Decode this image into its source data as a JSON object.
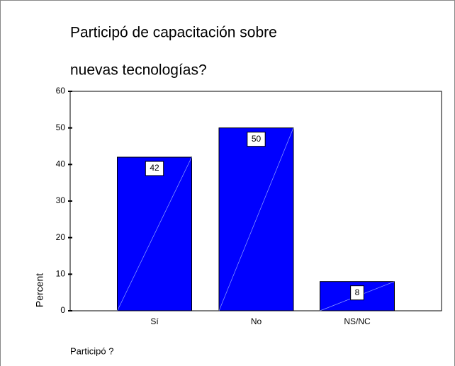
{
  "chart_data": {
    "type": "bar",
    "title": [
      "Participó de capacitación sobre",
      "nuevas tecnologías?"
    ],
    "categories": [
      "Sí",
      "No",
      "NS/NC"
    ],
    "values": [
      42,
      50,
      8
    ],
    "color": "#0000ff",
    "xlabel": "Participó ?",
    "ylabel": "Percent",
    "ylim": [
      0,
      60
    ],
    "yticks": [
      0,
      10,
      20,
      30,
      40,
      50,
      60
    ]
  }
}
